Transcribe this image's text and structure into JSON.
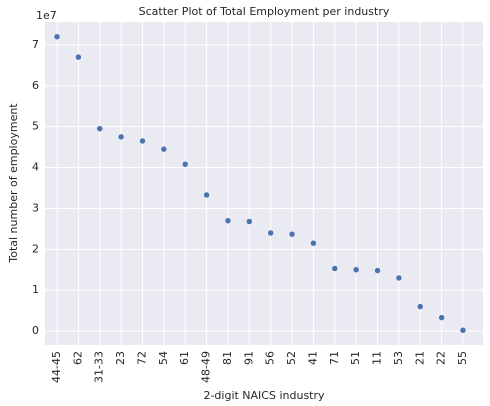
{
  "chart_data": {
    "type": "scatter",
    "title": "Scatter Plot of Total Employment per industry",
    "x_label": "2-digit NAICS industry",
    "y_label": "Total number of employment",
    "y_offset_label": "1e7",
    "categories": [
      "44-45",
      "62",
      "31-33",
      "23",
      "72",
      "54",
      "61",
      "48-49",
      "81",
      "91",
      "56",
      "52",
      "41",
      "71",
      "51",
      "11",
      "53",
      "21",
      "22",
      "55"
    ],
    "values": [
      7.2,
      6.7,
      4.95,
      4.75,
      4.65,
      4.45,
      4.08,
      3.33,
      2.7,
      2.68,
      2.4,
      2.37,
      2.15,
      1.53,
      1.5,
      1.48,
      1.3,
      0.6,
      0.33,
      0.02
    ],
    "color": "#4c72b0",
    "ylim": [
      -0.34,
      7.56
    ],
    "yticks": [
      0,
      1,
      2,
      3,
      4,
      5,
      6,
      7
    ],
    "grid": true,
    "background": "#eaeaf2"
  }
}
